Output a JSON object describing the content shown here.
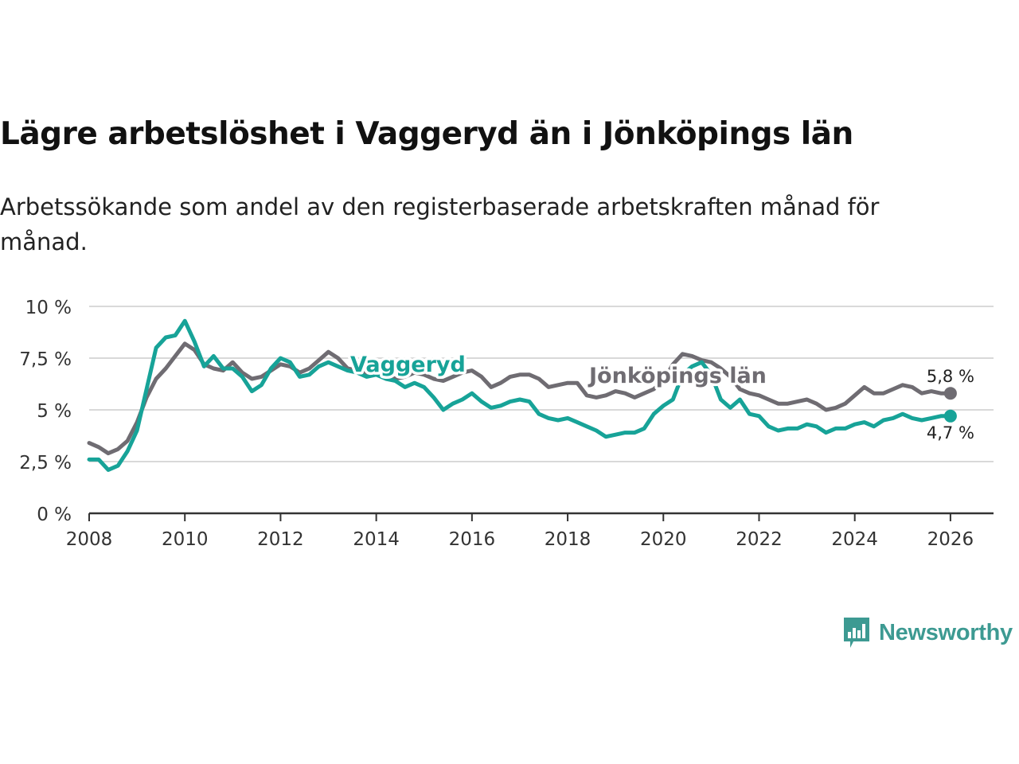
{
  "title": "Lägre arbetslöshet i Vaggeryd än i Jönköpings län",
  "subtitle": "Arbetssökande som andel av den registerbaserade arbetskraften månad för månad.",
  "brand": "Newsworthy",
  "colors": {
    "vaggeryd": "#17a398",
    "jonkoping": "#6f6c72",
    "grid": "#d9d9d9",
    "axis": "#333333",
    "brand": "#3d9a92"
  },
  "chart_data": {
    "type": "line",
    "ylim": [
      0,
      10
    ],
    "xlim": [
      2008,
      2026.9
    ],
    "yticks": [
      0,
      2.5,
      5,
      7.5,
      10
    ],
    "ytick_labels": [
      "0 %",
      "2,5 %",
      "5 %",
      "7,5 %",
      "10 %"
    ],
    "xticks": [
      2008,
      2010,
      2012,
      2014,
      2016,
      2018,
      2020,
      2022,
      2024,
      2026
    ],
    "xtick_labels": [
      "2008",
      "2010",
      "2012",
      "2014",
      "2016",
      "2018",
      "2020",
      "2022",
      "2024",
      "2026"
    ],
    "series": [
      {
        "name": "Jönköpings län",
        "label": "Jönköpings län",
        "end_label": "5,8 %",
        "end_value": 5.8,
        "points": [
          [
            2008.0,
            3.4
          ],
          [
            2008.2,
            3.2
          ],
          [
            2008.4,
            2.9
          ],
          [
            2008.6,
            3.1
          ],
          [
            2008.8,
            3.5
          ],
          [
            2009.0,
            4.4
          ],
          [
            2009.2,
            5.6
          ],
          [
            2009.4,
            6.5
          ],
          [
            2009.6,
            7.0
          ],
          [
            2009.8,
            7.6
          ],
          [
            2010.0,
            8.2
          ],
          [
            2010.2,
            7.9
          ],
          [
            2010.4,
            7.2
          ],
          [
            2010.6,
            7.0
          ],
          [
            2010.8,
            6.9
          ],
          [
            2011.0,
            7.3
          ],
          [
            2011.2,
            6.8
          ],
          [
            2011.4,
            6.5
          ],
          [
            2011.6,
            6.6
          ],
          [
            2011.8,
            6.9
          ],
          [
            2012.0,
            7.2
          ],
          [
            2012.2,
            7.1
          ],
          [
            2012.4,
            6.8
          ],
          [
            2012.6,
            7.0
          ],
          [
            2012.8,
            7.4
          ],
          [
            2013.0,
            7.8
          ],
          [
            2013.2,
            7.5
          ],
          [
            2013.4,
            7.0
          ],
          [
            2013.6,
            6.9
          ],
          [
            2013.8,
            6.8
          ],
          [
            2014.0,
            6.8
          ],
          [
            2014.2,
            6.7
          ],
          [
            2014.4,
            6.5
          ],
          [
            2014.6,
            6.6
          ],
          [
            2014.8,
            6.8
          ],
          [
            2015.0,
            6.7
          ],
          [
            2015.2,
            6.5
          ],
          [
            2015.4,
            6.4
          ],
          [
            2015.6,
            6.6
          ],
          [
            2015.8,
            6.8
          ],
          [
            2016.0,
            6.9
          ],
          [
            2016.2,
            6.6
          ],
          [
            2016.4,
            6.1
          ],
          [
            2016.6,
            6.3
          ],
          [
            2016.8,
            6.6
          ],
          [
            2017.0,
            6.7
          ],
          [
            2017.2,
            6.7
          ],
          [
            2017.4,
            6.5
          ],
          [
            2017.6,
            6.1
          ],
          [
            2017.8,
            6.2
          ],
          [
            2018.0,
            6.3
          ],
          [
            2018.2,
            6.3
          ],
          [
            2018.4,
            5.7
          ],
          [
            2018.6,
            5.6
          ],
          [
            2018.8,
            5.7
          ],
          [
            2019.0,
            5.9
          ],
          [
            2019.2,
            5.8
          ],
          [
            2019.4,
            5.6
          ],
          [
            2019.6,
            5.8
          ],
          [
            2019.8,
            6.0
          ],
          [
            2020.0,
            6.4
          ],
          [
            2020.2,
            7.2
          ],
          [
            2020.4,
            7.7
          ],
          [
            2020.6,
            7.6
          ],
          [
            2020.8,
            7.4
          ],
          [
            2021.0,
            7.3
          ],
          [
            2021.2,
            7.0
          ],
          [
            2021.4,
            6.6
          ],
          [
            2021.6,
            6.0
          ],
          [
            2021.8,
            5.8
          ],
          [
            2022.0,
            5.7
          ],
          [
            2022.2,
            5.5
          ],
          [
            2022.4,
            5.3
          ],
          [
            2022.6,
            5.3
          ],
          [
            2022.8,
            5.4
          ],
          [
            2023.0,
            5.5
          ],
          [
            2023.2,
            5.3
          ],
          [
            2023.4,
            5.0
          ],
          [
            2023.6,
            5.1
          ],
          [
            2023.8,
            5.3
          ],
          [
            2024.0,
            5.7
          ],
          [
            2024.2,
            6.1
          ],
          [
            2024.4,
            5.8
          ],
          [
            2024.6,
            5.8
          ],
          [
            2024.8,
            6.0
          ],
          [
            2025.0,
            6.2
          ],
          [
            2025.2,
            6.1
          ],
          [
            2025.4,
            5.8
          ],
          [
            2025.6,
            5.9
          ],
          [
            2025.8,
            5.8
          ],
          [
            2026.0,
            5.8
          ]
        ]
      },
      {
        "name": "Vaggeryd",
        "label": "Vaggeryd",
        "end_label": "4,7 %",
        "end_value": 4.7,
        "points": [
          [
            2008.0,
            2.6
          ],
          [
            2008.2,
            2.6
          ],
          [
            2008.4,
            2.1
          ],
          [
            2008.6,
            2.3
          ],
          [
            2008.8,
            3.0
          ],
          [
            2009.0,
            4.0
          ],
          [
            2009.2,
            6.0
          ],
          [
            2009.4,
            8.0
          ],
          [
            2009.6,
            8.5
          ],
          [
            2009.8,
            8.6
          ],
          [
            2010.0,
            9.3
          ],
          [
            2010.2,
            8.3
          ],
          [
            2010.4,
            7.1
          ],
          [
            2010.6,
            7.6
          ],
          [
            2010.8,
            7.0
          ],
          [
            2011.0,
            7.0
          ],
          [
            2011.2,
            6.6
          ],
          [
            2011.4,
            5.9
          ],
          [
            2011.6,
            6.2
          ],
          [
            2011.8,
            7.0
          ],
          [
            2012.0,
            7.5
          ],
          [
            2012.2,
            7.3
          ],
          [
            2012.4,
            6.6
          ],
          [
            2012.6,
            6.7
          ],
          [
            2012.8,
            7.1
          ],
          [
            2013.0,
            7.3
          ],
          [
            2013.2,
            7.1
          ],
          [
            2013.4,
            6.9
          ],
          [
            2013.6,
            6.8
          ],
          [
            2013.8,
            6.6
          ],
          [
            2014.0,
            6.7
          ],
          [
            2014.2,
            6.5
          ],
          [
            2014.4,
            6.4
          ],
          [
            2014.6,
            6.1
          ],
          [
            2014.8,
            6.3
          ],
          [
            2015.0,
            6.1
          ],
          [
            2015.2,
            5.6
          ],
          [
            2015.4,
            5.0
          ],
          [
            2015.6,
            5.3
          ],
          [
            2015.8,
            5.5
          ],
          [
            2016.0,
            5.8
          ],
          [
            2016.2,
            5.4
          ],
          [
            2016.4,
            5.1
          ],
          [
            2016.6,
            5.2
          ],
          [
            2016.8,
            5.4
          ],
          [
            2017.0,
            5.5
          ],
          [
            2017.2,
            5.4
          ],
          [
            2017.4,
            4.8
          ],
          [
            2017.6,
            4.6
          ],
          [
            2017.8,
            4.5
          ],
          [
            2018.0,
            4.6
          ],
          [
            2018.2,
            4.4
          ],
          [
            2018.4,
            4.2
          ],
          [
            2018.6,
            4.0
          ],
          [
            2018.8,
            3.7
          ],
          [
            2019.0,
            3.8
          ],
          [
            2019.2,
            3.9
          ],
          [
            2019.4,
            3.9
          ],
          [
            2019.6,
            4.1
          ],
          [
            2019.8,
            4.8
          ],
          [
            2020.0,
            5.2
          ],
          [
            2020.2,
            5.5
          ],
          [
            2020.4,
            6.7
          ],
          [
            2020.6,
            7.1
          ],
          [
            2020.8,
            7.3
          ],
          [
            2021.0,
            6.7
          ],
          [
            2021.2,
            5.5
          ],
          [
            2021.4,
            5.1
          ],
          [
            2021.6,
            5.5
          ],
          [
            2021.8,
            4.8
          ],
          [
            2022.0,
            4.7
          ],
          [
            2022.2,
            4.2
          ],
          [
            2022.4,
            4.0
          ],
          [
            2022.6,
            4.1
          ],
          [
            2022.8,
            4.1
          ],
          [
            2023.0,
            4.3
          ],
          [
            2023.2,
            4.2
          ],
          [
            2023.4,
            3.9
          ],
          [
            2023.6,
            4.1
          ],
          [
            2023.8,
            4.1
          ],
          [
            2024.0,
            4.3
          ],
          [
            2024.2,
            4.4
          ],
          [
            2024.4,
            4.2
          ],
          [
            2024.6,
            4.5
          ],
          [
            2024.8,
            4.6
          ],
          [
            2025.0,
            4.8
          ],
          [
            2025.2,
            4.6
          ],
          [
            2025.4,
            4.5
          ],
          [
            2025.6,
            4.6
          ],
          [
            2025.8,
            4.7
          ],
          [
            2026.0,
            4.7
          ]
        ]
      }
    ]
  }
}
